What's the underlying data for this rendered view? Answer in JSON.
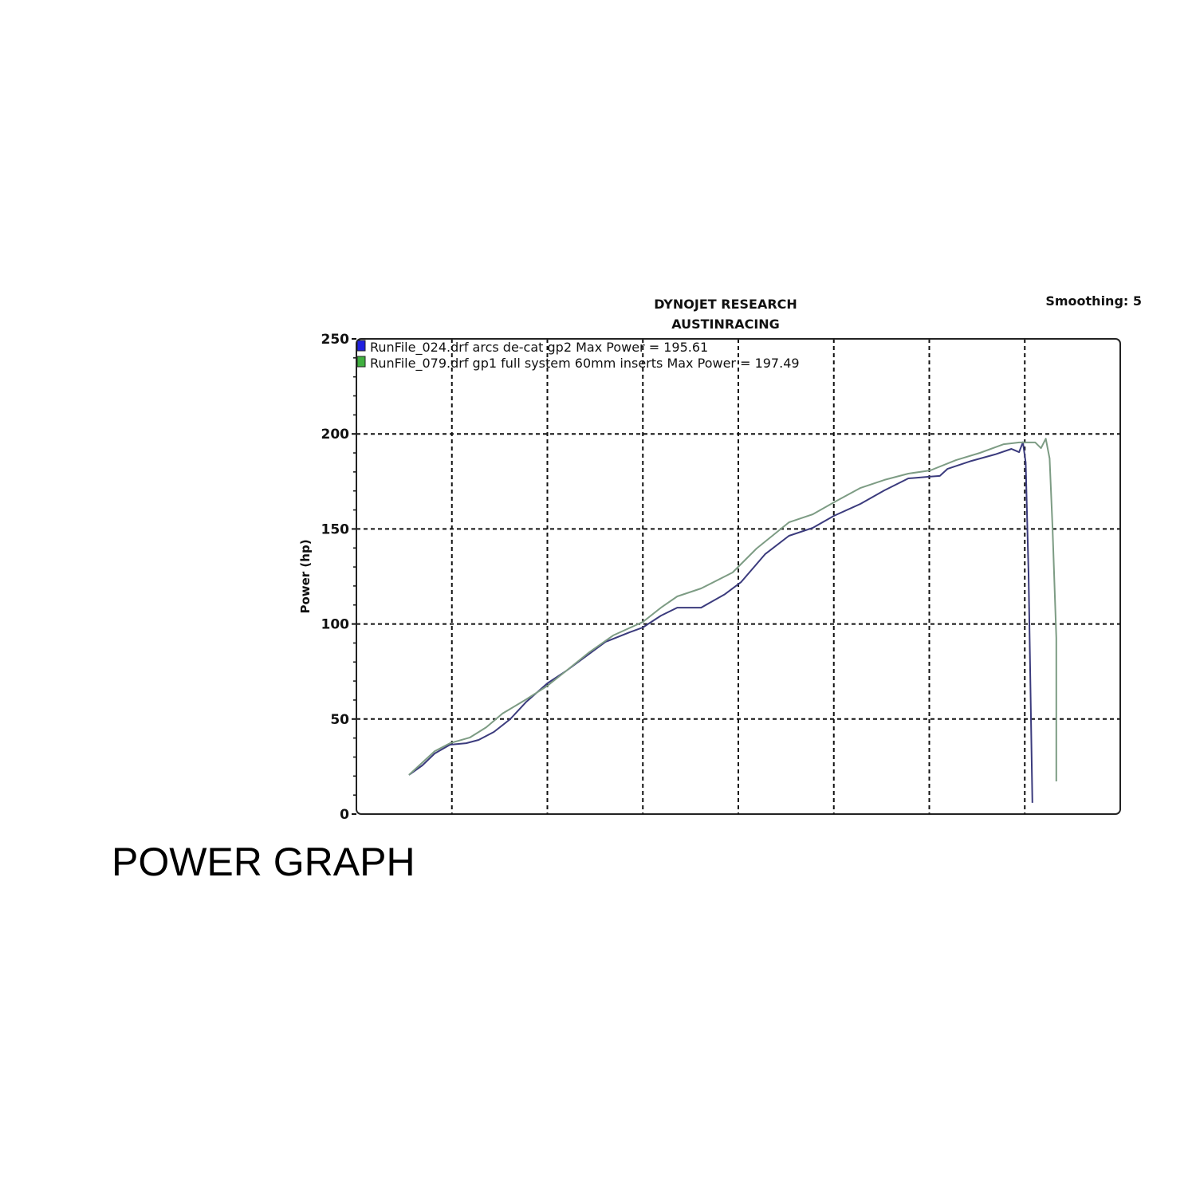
{
  "caption": "POWER GRAPH",
  "chart_data": {
    "type": "line",
    "title": "DYNOJET RESEARCH",
    "subtitle": "AUSTINRACING",
    "smoothing_label": "Smoothing: 5",
    "ylabel": "Power (hp)",
    "xlabel": "",
    "ylim": [
      0,
      250
    ],
    "yticks": [
      "0",
      "50",
      "100",
      "150",
      "200",
      "250"
    ],
    "xlim": [
      0,
      8
    ],
    "grid": true,
    "x_ticks_labeled": false,
    "legend_placement": "top-left",
    "series": [
      {
        "name": "RunFile_024.drf arcs de-cat gp2 Max Power = 195.61",
        "color": "#3b3b7d",
        "marker_color": "#2020e0",
        "x": [
          0.55,
          0.69,
          0.82,
          0.98,
          1.15,
          1.28,
          1.44,
          1.61,
          1.78,
          2.0,
          2.19,
          2.44,
          2.61,
          2.86,
          3.0,
          3.19,
          3.36,
          3.61,
          3.86,
          4.03,
          4.28,
          4.53,
          4.78,
          5.0,
          5.28,
          5.53,
          5.78,
          6.01,
          6.11,
          6.19,
          6.44,
          6.69,
          6.86,
          6.94,
          6.98,
          7.01,
          7.04,
          7.08
        ],
        "y": [
          20.6,
          25.6,
          31.9,
          36.5,
          37.3,
          39.0,
          43.2,
          49.9,
          59.1,
          68.8,
          75.1,
          84.3,
          90.6,
          95.6,
          98.2,
          104.4,
          108.6,
          108.6,
          115.7,
          122.1,
          136.7,
          146.4,
          150.6,
          156.9,
          163.2,
          170.3,
          176.6,
          177.5,
          177.9,
          181.6,
          185.8,
          189.2,
          192.1,
          190.4,
          195.6,
          185.0,
          126.3,
          5.9
        ]
      },
      {
        "name": "RunFile_079.drf gp1 full system 60mm inserts Max Power = 197.49",
        "color": "#7d9c84",
        "marker_color": "#40b040",
        "x": [
          0.55,
          0.82,
          0.98,
          1.19,
          1.36,
          1.53,
          1.78,
          2.0,
          2.19,
          2.44,
          2.69,
          3.0,
          3.19,
          3.36,
          3.61,
          3.94,
          4.19,
          4.53,
          4.78,
          5.03,
          5.28,
          5.53,
          5.78,
          6.01,
          6.28,
          6.53,
          6.78,
          6.94,
          7.11,
          7.17,
          7.22,
          7.26,
          7.29,
          7.33,
          7.33
        ],
        "y": [
          20.6,
          33.1,
          37.3,
          40.3,
          45.7,
          52.9,
          60.4,
          67.5,
          75.1,
          85.2,
          94.0,
          101.1,
          108.6,
          114.5,
          118.7,
          127.1,
          139.7,
          153.5,
          157.7,
          164.8,
          171.6,
          175.8,
          179.1,
          180.8,
          186.2,
          190.0,
          194.6,
          195.5,
          195.5,
          192.5,
          197.5,
          187.1,
          151.4,
          92.7,
          17.2
        ]
      }
    ]
  }
}
